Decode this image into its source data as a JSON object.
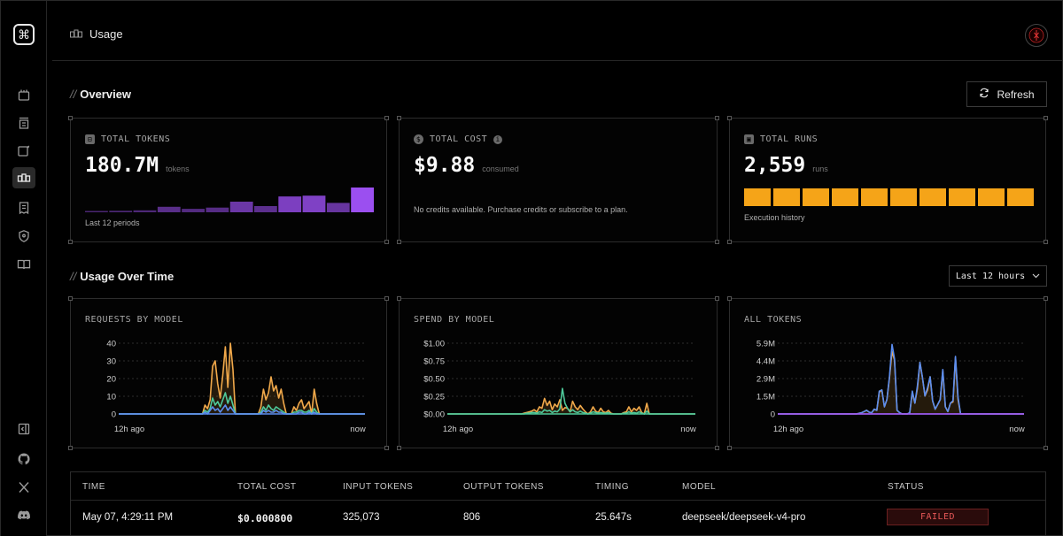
{
  "header": {
    "page_title": "Usage"
  },
  "overview": {
    "title": "Overview",
    "refresh_label": "Refresh",
    "cards": [
      {
        "label": "TOTAL TOKENS",
        "value": "180.7M",
        "unit": "tokens",
        "footer": "Last 12 periods",
        "bars": [
          0.04,
          0.06,
          0.08,
          0.22,
          0.14,
          0.19,
          0.43,
          0.25,
          0.64,
          0.67,
          0.38,
          1.0
        ]
      },
      {
        "label": "TOTAL COST",
        "value": "$9.88",
        "unit": "consumed",
        "footer": "No credits available. Purchase credits or subscribe to a plan."
      },
      {
        "label": "TOTAL RUNS",
        "value": "2,559",
        "unit": "runs",
        "footer": "Execution history",
        "blocks": 10
      }
    ]
  },
  "usage": {
    "title": "Usage Over Time",
    "range_label": "Last 12 hours"
  },
  "chart_data": [
    {
      "type": "line",
      "title": "REQUESTS BY MODEL",
      "yticks": [
        "40",
        "30",
        "20",
        "10",
        "0"
      ],
      "ylim": [
        0,
        40
      ],
      "x_start_label": "12h ago",
      "x_end_label": "now",
      "series": [
        {
          "color": "#f0a84a",
          "values": [
            0,
            0,
            0,
            0,
            0,
            0,
            0,
            0,
            0,
            0,
            0,
            0,
            0,
            0,
            0,
            0,
            0,
            0,
            0,
            0,
            0,
            0,
            0,
            0,
            0,
            0,
            0,
            0,
            0,
            0,
            0,
            0,
            0,
            0,
            5,
            3,
            8,
            27,
            30,
            17,
            9,
            22,
            38,
            15,
            40,
            25,
            0,
            0,
            0,
            0,
            0,
            0,
            0,
            0,
            0,
            0,
            4,
            14,
            8,
            12,
            21,
            13,
            16,
            9,
            14,
            6,
            0,
            0,
            0,
            4,
            2,
            6,
            8,
            3,
            5,
            7,
            0,
            14,
            6,
            0,
            0,
            0,
            0,
            0,
            0,
            0,
            0,
            0,
            0,
            0,
            0,
            0,
            0,
            0,
            0,
            0,
            0,
            0
          ]
        },
        {
          "color": "#4ec99a",
          "values": [
            0,
            0,
            0,
            0,
            0,
            0,
            0,
            0,
            0,
            0,
            0,
            0,
            0,
            0,
            0,
            0,
            0,
            0,
            0,
            0,
            0,
            0,
            0,
            0,
            0,
            0,
            0,
            0,
            0,
            0,
            0,
            0,
            0,
            0,
            2,
            1,
            3,
            9,
            5,
            7,
            4,
            8,
            12,
            6,
            10,
            5,
            0,
            0,
            0,
            0,
            0,
            0,
            0,
            0,
            0,
            0,
            1,
            4,
            2,
            5,
            3,
            2,
            4,
            3,
            2,
            1,
            0,
            0,
            0,
            1,
            1,
            2,
            2,
            1,
            1,
            2,
            0,
            3,
            1,
            0,
            0,
            0,
            0,
            0,
            0,
            0,
            0,
            0,
            0,
            0,
            0,
            0,
            0,
            0,
            0,
            0,
            0,
            0
          ]
        },
        {
          "color": "#5b8def",
          "values": [
            0,
            0,
            0,
            0,
            0,
            0,
            0,
            0,
            0,
            0,
            0,
            0,
            0,
            0,
            0,
            0,
            0,
            0,
            0,
            0,
            0,
            0,
            0,
            0,
            0,
            0,
            0,
            0,
            0,
            0,
            0,
            0,
            0,
            0,
            1,
            0,
            2,
            4,
            2,
            3,
            1,
            3,
            5,
            2,
            4,
            2,
            0,
            0,
            0,
            0,
            0,
            0,
            0,
            0,
            0,
            0,
            0,
            2,
            1,
            2,
            1,
            1,
            2,
            1,
            1,
            0,
            0,
            0,
            0,
            0,
            0,
            1,
            1,
            0,
            0,
            1,
            0,
            1,
            0,
            0,
            0,
            0,
            0,
            0,
            0,
            0,
            0,
            0,
            0,
            0,
            0,
            0,
            0,
            0,
            0,
            0,
            0,
            0
          ]
        }
      ]
    },
    {
      "type": "line",
      "title": "SPEND BY MODEL",
      "yticks": [
        "$1.00",
        "$0.75",
        "$0.50",
        "$0.25",
        "$0.00"
      ],
      "ylim": [
        0,
        1
      ],
      "x_start_label": "12h ago",
      "x_end_label": "now",
      "series": [
        {
          "color": "#f0a84a",
          "values": [
            0,
            0,
            0,
            0,
            0,
            0,
            0,
            0,
            0,
            0,
            0,
            0,
            0,
            0,
            0,
            0,
            0,
            0,
            0,
            0,
            0,
            0,
            0,
            0,
            0,
            0,
            0,
            0,
            0,
            0,
            0.01,
            0.02,
            0.03,
            0.04,
            0.06,
            0.03,
            0.1,
            0.08,
            0.22,
            0.12,
            0.18,
            0.06,
            0.14,
            0.1,
            0.2,
            0.05,
            0.09,
            0.08,
            0.03,
            0.18,
            0.1,
            0.06,
            0.12,
            0.07,
            0.03,
            0.0,
            0.03,
            0.1,
            0.04,
            0.02,
            0.08,
            0.03,
            0.02,
            0.05,
            0.01,
            0,
            0,
            0,
            0,
            0.02,
            0.03,
            0.1,
            0.03,
            0.08,
            0.05,
            0.1,
            0.02,
            0.0,
            0.15,
            0,
            0,
            0,
            0,
            0,
            0,
            0,
            0,
            0,
            0,
            0,
            0,
            0,
            0,
            0,
            0,
            0,
            0,
            0
          ]
        },
        {
          "color": "#4ec99a",
          "values": [
            0,
            0,
            0,
            0,
            0,
            0,
            0,
            0,
            0,
            0,
            0,
            0,
            0,
            0,
            0,
            0,
            0,
            0,
            0,
            0,
            0,
            0,
            0,
            0,
            0,
            0,
            0,
            0,
            0,
            0,
            0,
            0.01,
            0.01,
            0.02,
            0.02,
            0.01,
            0.03,
            0.02,
            0.06,
            0.04,
            0.05,
            0.02,
            0.04,
            0.03,
            0.07,
            0.36,
            0.15,
            0.08,
            0.03,
            0.06,
            0.03,
            0.02,
            0.04,
            0.02,
            0.01,
            0,
            0.01,
            0.03,
            0.02,
            0.01,
            0.02,
            0.01,
            0.01,
            0.02,
            0,
            0,
            0,
            0,
            0,
            0.01,
            0.01,
            0.03,
            0.01,
            0.02,
            0.01,
            0.03,
            0.01,
            0,
            0.04,
            0,
            0,
            0,
            0,
            0,
            0,
            0,
            0,
            0,
            0,
            0,
            0,
            0,
            0,
            0,
            0,
            0,
            0,
            0
          ]
        }
      ]
    },
    {
      "type": "area",
      "title": "ALL TOKENS",
      "yticks": [
        "5.9M",
        "4.4M",
        "2.9M",
        "1.5M",
        "0"
      ],
      "ylim": [
        0,
        5.9
      ],
      "x_start_label": "12h ago",
      "x_end_label": "now",
      "series": [
        {
          "color": "#f0a84a",
          "values": [
            0,
            0,
            0,
            0,
            0,
            0,
            0,
            0,
            0,
            0,
            0,
            0,
            0,
            0,
            0,
            0,
            0,
            0,
            0,
            0,
            0,
            0,
            0,
            0,
            0,
            0,
            0,
            0,
            0,
            0,
            0,
            0,
            0.05,
            0.1,
            0.2,
            0.3,
            0.15,
            0.1,
            0.4,
            0.3,
            1.8,
            2.0,
            0.6,
            1.2,
            3.0,
            5.2,
            4.5,
            0.3,
            0.1,
            0,
            0,
            0,
            0.1,
            1.8,
            0.9,
            2.1,
            4.3,
            3.0,
            1.5,
            2.0,
            3.1,
            1.1,
            0.4,
            0.8,
            1.2,
            3.6,
            0.6,
            0.2,
            0.9,
            1.0,
            4.7,
            1.2,
            0,
            0,
            0,
            0,
            0,
            0,
            0,
            0,
            0,
            0,
            0,
            0,
            0,
            0,
            0,
            0,
            0,
            0,
            0,
            0,
            0,
            0,
            0,
            0,
            0,
            0
          ]
        },
        {
          "color": "#5b8def",
          "values": [
            0,
            0,
            0,
            0,
            0,
            0,
            0,
            0,
            0,
            0,
            0,
            0,
            0,
            0,
            0,
            0,
            0,
            0,
            0,
            0,
            0,
            0,
            0,
            0,
            0,
            0,
            0,
            0,
            0,
            0,
            0,
            0,
            0.05,
            0.1,
            0.2,
            0.3,
            0.15,
            0.1,
            0.4,
            0.3,
            1.9,
            2.0,
            0.6,
            1.2,
            3.1,
            5.8,
            4.6,
            0.3,
            0.1,
            0,
            0,
            0,
            0.1,
            1.9,
            0.9,
            2.3,
            4.3,
            3.0,
            1.5,
            2.2,
            3.1,
            1.1,
            0.4,
            0.8,
            1.2,
            3.7,
            0.6,
            0.2,
            0.9,
            1.1,
            4.8,
            1.4,
            0,
            0,
            0,
            0,
            0,
            0,
            0,
            0,
            0,
            0,
            0,
            0,
            0,
            0,
            0,
            0,
            0,
            0,
            0,
            0,
            0,
            0,
            0,
            0,
            0,
            0
          ]
        },
        {
          "color": "#9b5bef",
          "values": [
            0,
            0,
            0,
            0,
            0,
            0,
            0,
            0,
            0,
            0,
            0,
            0,
            0,
            0,
            0,
            0,
            0,
            0,
            0,
            0,
            0,
            0,
            0,
            0,
            0,
            0,
            0,
            0,
            0,
            0,
            0,
            0,
            0,
            0,
            0,
            0,
            0,
            0,
            0,
            0,
            0,
            0,
            0,
            0,
            0,
            0,
            0,
            0,
            0,
            0,
            0,
            0,
            0,
            0,
            0,
            0,
            0,
            0,
            0,
            0,
            0,
            0,
            0,
            0,
            0,
            0,
            0,
            0,
            0,
            0,
            0,
            0,
            0,
            0,
            0,
            0,
            0,
            0,
            0,
            0,
            0,
            0,
            0,
            0,
            0,
            0,
            0,
            0,
            0,
            0,
            0,
            0,
            0,
            0,
            0,
            0,
            0,
            0
          ]
        }
      ]
    }
  ],
  "table": {
    "columns": [
      "TIME",
      "TOTAL COST",
      "INPUT TOKENS",
      "OUTPUT TOKENS",
      "TIMING",
      "MODEL",
      "STATUS"
    ],
    "rows": [
      {
        "time": "May 07, 4:29:11 PM",
        "total_cost": "$0.000800",
        "input_tokens": "325,073",
        "output_tokens": "806",
        "timing": "25.647s",
        "model": "deepseek/deepseek-v4-pro",
        "status": "FAILED"
      }
    ]
  },
  "colors": {
    "accent_purple": "#9b4ff0",
    "runs_orange": "#f5a418",
    "failed_red": "#e55757"
  }
}
